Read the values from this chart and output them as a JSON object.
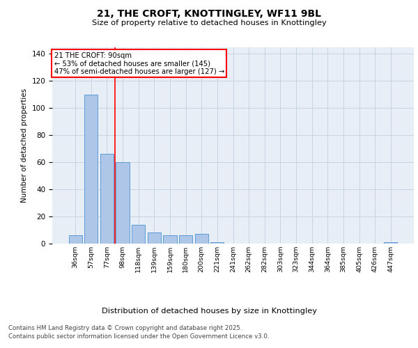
{
  "title_line1": "21, THE CROFT, KNOTTINGLEY, WF11 9BL",
  "title_line2": "Size of property relative to detached houses in Knottingley",
  "xlabel": "Distribution of detached houses by size in Knottingley",
  "ylabel": "Number of detached properties",
  "categories": [
    "36sqm",
    "57sqm",
    "77sqm",
    "98sqm",
    "118sqm",
    "139sqm",
    "159sqm",
    "180sqm",
    "200sqm",
    "221sqm",
    "241sqm",
    "262sqm",
    "282sqm",
    "303sqm",
    "323sqm",
    "344sqm",
    "364sqm",
    "385sqm",
    "405sqm",
    "426sqm",
    "447sqm"
  ],
  "values": [
    6,
    110,
    66,
    60,
    14,
    8,
    6,
    6,
    7,
    1,
    0,
    0,
    0,
    0,
    0,
    0,
    0,
    0,
    0,
    0,
    1
  ],
  "bar_color": "#aec6e8",
  "bar_edge_color": "#5b9bd5",
  "vline_x": 2.5,
  "vline_color": "red",
  "annotation_title": "21 THE CROFT: 90sqm",
  "annotation_line2": "← 53% of detached houses are smaller (145)",
  "annotation_line3": "47% of semi-detached houses are larger (127) →",
  "annotation_box_color": "red",
  "ylim": [
    0,
    145
  ],
  "yticks": [
    0,
    20,
    40,
    60,
    80,
    100,
    120,
    140
  ],
  "bg_color": "#e8eef6",
  "grid_color": "#c8d4e0",
  "footer_line1": "Contains HM Land Registry data © Crown copyright and database right 2025.",
  "footer_line2": "Contains public sector information licensed under the Open Government Licence v3.0."
}
